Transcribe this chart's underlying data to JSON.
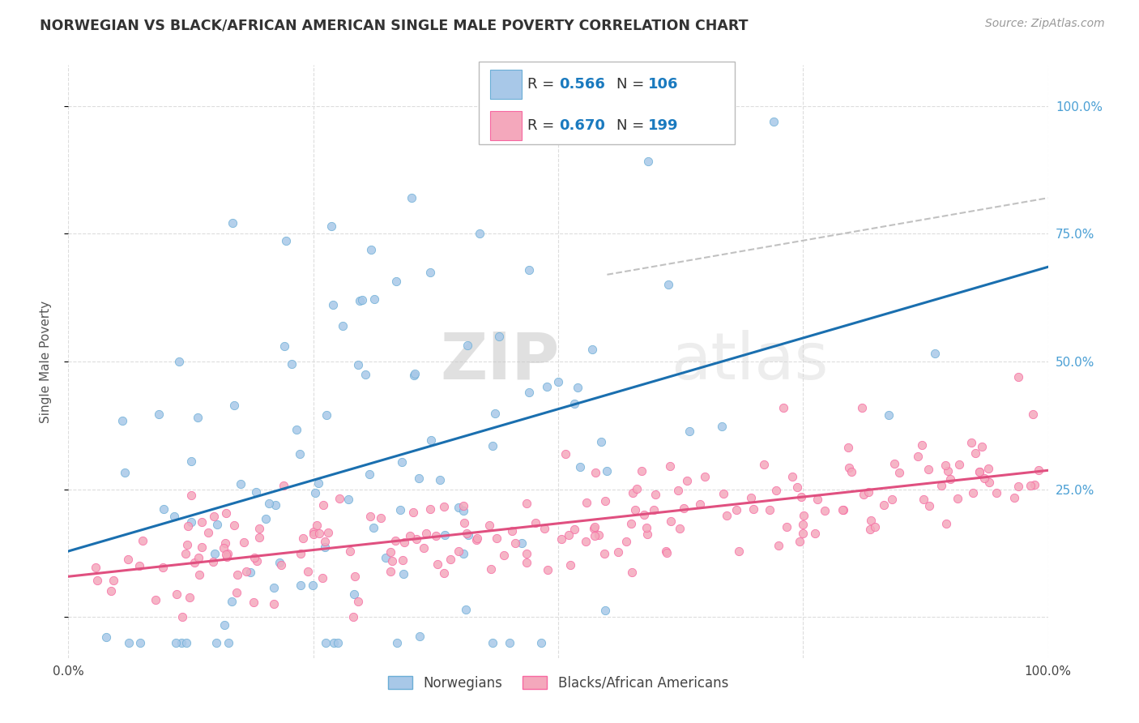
{
  "title": "NORWEGIAN VS BLACK/AFRICAN AMERICAN SINGLE MALE POVERTY CORRELATION CHART",
  "source": "Source: ZipAtlas.com",
  "ylabel": "Single Male Poverty",
  "xlim": [
    0,
    1
  ],
  "ylim": [
    -0.08,
    1.08
  ],
  "norwegian_color": "#a8c8e8",
  "norwegian_edge": "#6baed6",
  "black_color": "#f4a8bc",
  "black_edge": "#f768a1",
  "legend_color": "#1a7abf",
  "norwegian_R": 0.566,
  "norwegian_N": 106,
  "black_R": 0.67,
  "black_N": 199,
  "norwegian_trend_color": "#1a6faf",
  "black_trend_color": "#e05080",
  "diagonal_color": "#bbbbbb",
  "background_color": "#ffffff",
  "grid_color": "#dddddd",
  "right_tick_color": "#4a9fd4"
}
